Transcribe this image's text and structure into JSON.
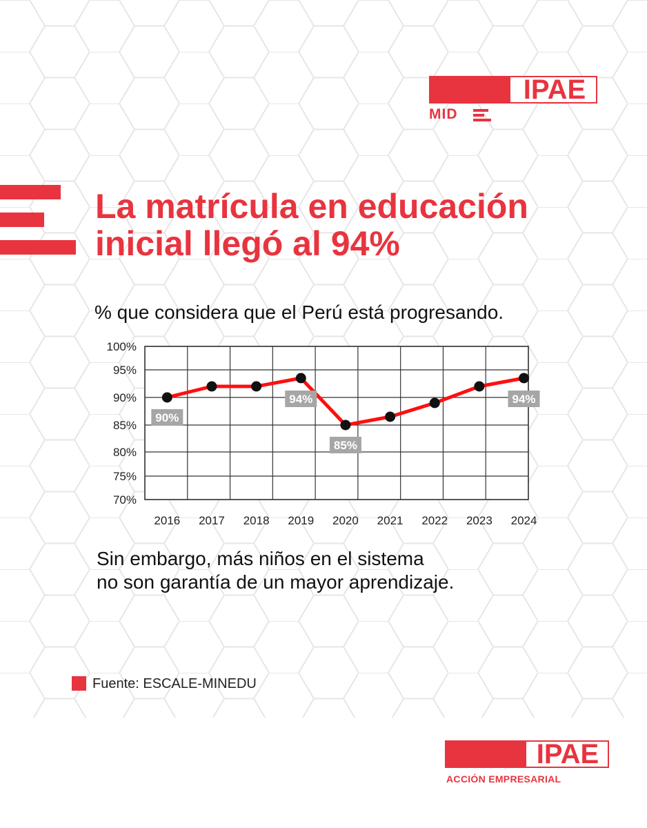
{
  "logo_top": {
    "brand": "IPAE",
    "sub": "MID"
  },
  "title": {
    "line1": "La matrícula en educación",
    "line2": "inicial llegó al 94%"
  },
  "subtitle": "% que considera que el Perú está progresando.",
  "note": {
    "line1": "Sin embargo, más niños en el sistema",
    "line2": "no son garantía de un mayor aprendizaje."
  },
  "source": "Fuente: ESCALE-MINEDU",
  "logo_bottom": {
    "brand": "IPAE",
    "sub": "ACCIÓN EMPRESARIAL"
  },
  "colors": {
    "accent": "#e8343f",
    "line": "#ff0f0f",
    "label_bg": "#a6a6a6"
  },
  "chart_data": {
    "type": "line",
    "title": "% que considera que el Perú está progresando.",
    "categories": [
      "2016",
      "2017",
      "2018",
      "2019",
      "2020",
      "2021",
      "2022",
      "2023",
      "2024"
    ],
    "values": [
      90.0,
      92.0,
      92.0,
      93.5,
      85.0,
      86.5,
      89.0,
      92.0,
      93.5
    ],
    "data_labels": [
      {
        "index": 0,
        "text": "90%"
      },
      {
        "index": 3,
        "text": "94%"
      },
      {
        "index": 4,
        "text": "85%"
      },
      {
        "index": 8,
        "text": "94%"
      }
    ],
    "y_ticks": [
      100,
      95,
      90,
      85,
      80,
      75,
      70
    ],
    "y_tick_labels": [
      "100%",
      "95%",
      "90%",
      "85%",
      "80%",
      "75%",
      "70%"
    ],
    "ylim": [
      70,
      100
    ],
    "grid": true,
    "legend": "none"
  }
}
